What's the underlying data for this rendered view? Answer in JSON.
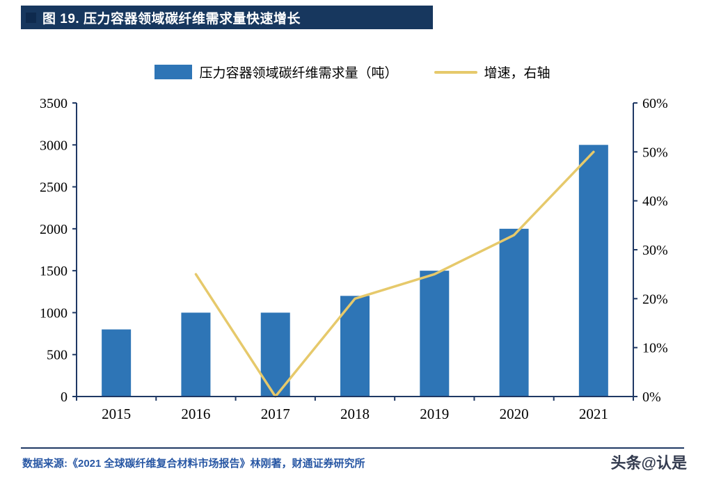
{
  "page": {
    "title_bar": {
      "label": "图 19. 压力容器领域碳纤维需求量快速增长"
    },
    "footer": {
      "source": "数据来源:《2021 全球碳纤维复合材料市场报告》林刚著，财通证券研究所",
      "watermark": "头条@认是"
    }
  },
  "colors": {
    "title_bar_bg": "#17375E",
    "title_square": "#0E2A4E",
    "title_text": "#FFFFFF",
    "bar": "#2E75B6",
    "line": "#E6C96B",
    "axis": "#1F3864",
    "tick_text": "#000000",
    "separator": "#1F3864",
    "source_text": "#2857A4",
    "watermark_text": "#333B4F"
  },
  "chart_data": {
    "type": "bar",
    "subtype": "bar + line, dual axis",
    "categories": [
      "2015",
      "2016",
      "2017",
      "2018",
      "2019",
      "2020",
      "2021"
    ],
    "series": [
      {
        "name": "压力容器领域碳纤维需求量（吨）",
        "type": "bar",
        "axis": "left",
        "color": "#2E75B6",
        "values": [
          800,
          1000,
          1000,
          1200,
          1500,
          2000,
          3000
        ]
      },
      {
        "name": "增速，右轴",
        "type": "line",
        "axis": "right",
        "color": "#E6C96B",
        "values": [
          null,
          25,
          0,
          20,
          25,
          33,
          50
        ]
      }
    ],
    "left_axis": {
      "min": 0,
      "max": 3500,
      "step": 500,
      "tick_labels": [
        "0",
        "500",
        "1000",
        "1500",
        "2000",
        "2500",
        "3000",
        "3500"
      ]
    },
    "right_axis": {
      "min": 0,
      "max": 60,
      "step": 10,
      "tick_labels": [
        "0%",
        "10%",
        "20%",
        "30%",
        "40%",
        "50%",
        "60%"
      ]
    },
    "grid": false,
    "legend_position": "top"
  }
}
